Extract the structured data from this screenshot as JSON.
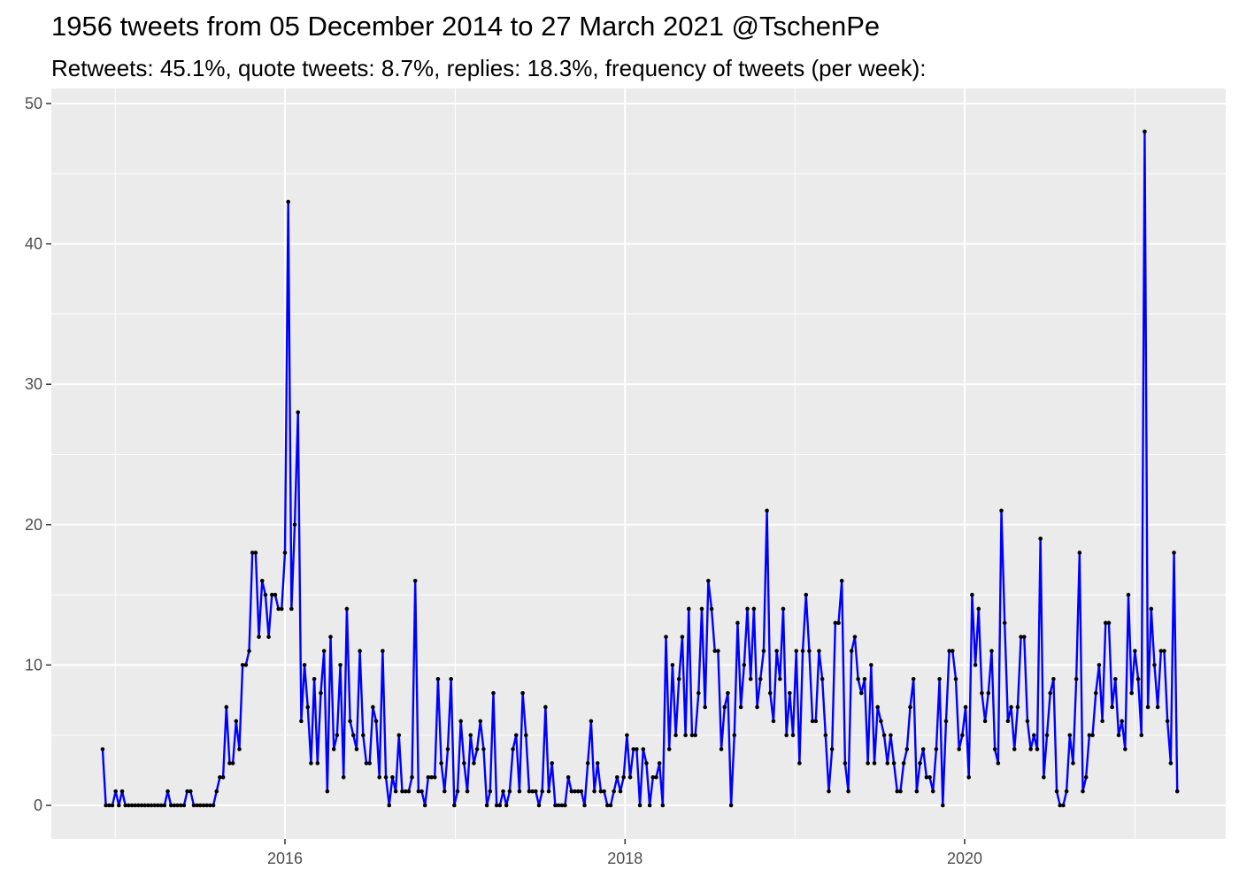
{
  "title": "1956 tweets from 05 December 2014 to 27 March 2021 @TschenPe",
  "subtitle": "Retweets: 45.1%, quote tweets: 8.7%, replies: 18.3%, frequency of tweets (per week):",
  "chart_data": {
    "type": "line",
    "title": "1956 tweets from 05 December 2014 to 27 March 2021 @TschenPe",
    "subtitle": "Retweets: 45.1%, quote tweets: 8.7%, replies: 18.3%, frequency of tweets (per week):",
    "xlabel": "",
    "ylabel": "",
    "ylim": [
      -2.2,
      50.2
    ],
    "x_tick_labels": [
      "2016",
      "2018",
      "2020"
    ],
    "y_tick_labels": [
      "0",
      "10",
      "20",
      "30",
      "40",
      "50"
    ],
    "grid": true,
    "panel_background": "#ebebeb",
    "line_color": "#0000ff",
    "point_color": "#000000",
    "series": [
      {
        "start_date": "2014-12-05",
        "interval_days": 7,
        "values": [
          4,
          0,
          0,
          0,
          1,
          0,
          1,
          0,
          0,
          0,
          0,
          0,
          0,
          0,
          0,
          0,
          0,
          0,
          0,
          0,
          1,
          0,
          0,
          0,
          0,
          0,
          1,
          1,
          0,
          0,
          0,
          0,
          0,
          0,
          0,
          1,
          2,
          2,
          7,
          3,
          3,
          6,
          4,
          10,
          10,
          11,
          18,
          18,
          12,
          16,
          15,
          12,
          15,
          15,
          14,
          14,
          18,
          43,
          14,
          20,
          28,
          6,
          10,
          7,
          3,
          9,
          3,
          8,
          11,
          1,
          12,
          4,
          5,
          10,
          2,
          14,
          6,
          5,
          4,
          11,
          5,
          3,
          3,
          7,
          6,
          2,
          11,
          2,
          0,
          2,
          1,
          5,
          1,
          1,
          1,
          2,
          16,
          1,
          1,
          0,
          2,
          2,
          2,
          9,
          3,
          1,
          4,
          9,
          0,
          1,
          6,
          3,
          1,
          5,
          3,
          4,
          6,
          4,
          0,
          1,
          8,
          0,
          0,
          1,
          0,
          1,
          4,
          5,
          1,
          8,
          5,
          1,
          1,
          1,
          0,
          1,
          7,
          1,
          3,
          0,
          0,
          0,
          0,
          2,
          1,
          1,
          1,
          1,
          0,
          3,
          6,
          1,
          3,
          1,
          1,
          0,
          0,
          1,
          2,
          1,
          2,
          5,
          2,
          4,
          4,
          0,
          4,
          3,
          0,
          2,
          2,
          3,
          0,
          12,
          4,
          10,
          5,
          9,
          12,
          5,
          14,
          5,
          5,
          8,
          14,
          7,
          16,
          14,
          11,
          11,
          4,
          7,
          8,
          0,
          5,
          13,
          7,
          10,
          14,
          9,
          14,
          7,
          9,
          11,
          21,
          8,
          6,
          11,
          9,
          14,
          5,
          8,
          5,
          11,
          3,
          11,
          15,
          11,
          6,
          6,
          11,
          9,
          5,
          1,
          4,
          13,
          13,
          16,
          3,
          1,
          11,
          12,
          9,
          8,
          9,
          3,
          10,
          3,
          7,
          6,
          5,
          3,
          5,
          3,
          1,
          1,
          3,
          4,
          7,
          9,
          1,
          3,
          4,
          2,
          2,
          1,
          4,
          9,
          0,
          6,
          11,
          11,
          9,
          4,
          5,
          7,
          2,
          15,
          10,
          14,
          8,
          6,
          8,
          11,
          4,
          3,
          21,
          13,
          6,
          7,
          4,
          7,
          12,
          12,
          6,
          4,
          5,
          4,
          19,
          2,
          5,
          8,
          9,
          1,
          0,
          0,
          1,
          5,
          3,
          9,
          18,
          1,
          2,
          5,
          5,
          8,
          10,
          6,
          13,
          13,
          7,
          9,
          5,
          6,
          4,
          15,
          8,
          11,
          9,
          5,
          48,
          7,
          14,
          10,
          7,
          11,
          11,
          6,
          3,
          18,
          1
        ]
      }
    ]
  }
}
